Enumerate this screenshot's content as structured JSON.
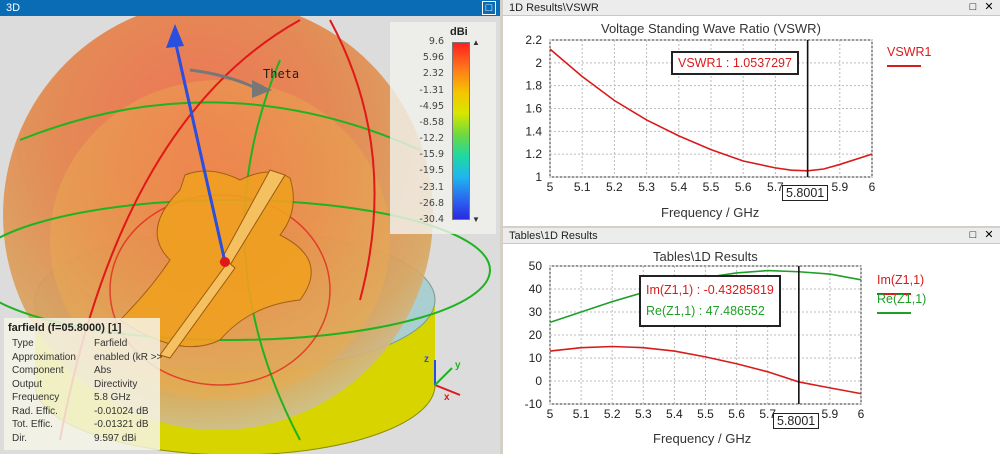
{
  "view3d": {
    "title": "3D",
    "theta_label": "Theta",
    "colorbar": {
      "unit": "dBi",
      "labels": [
        "9.6",
        "5.96",
        "2.32",
        "-1.31",
        "-4.95",
        "-8.58",
        "-12.2",
        "-15.9",
        "-19.5",
        "-23.1",
        "-26.8",
        "-30.4"
      ]
    },
    "farfield": {
      "title": "farfield (f=05.8000) [1]",
      "rows": [
        {
          "key": "Type",
          "value": "Farfield"
        },
        {
          "key": "Approximation",
          "value": "enabled (kR >>"
        },
        {
          "key": "Component",
          "value": "Abs"
        },
        {
          "key": "Output",
          "value": "Directivity"
        },
        {
          "key": "Frequency",
          "value": "5.8 GHz"
        },
        {
          "key": "Rad. Effic.",
          "value": "-0.01024 dB"
        },
        {
          "key": "Tot. Effic.",
          "value": "-0.01321 dB"
        },
        {
          "key": "Dir.",
          "value": "9.597 dBi"
        }
      ]
    },
    "axes": {
      "x": "x",
      "y": "y",
      "z": "z"
    }
  },
  "vswr_panel": {
    "title": "1D Results\\VSWR"
  },
  "results_panel": {
    "title": "Tables\\1D Results"
  },
  "chart_data": [
    {
      "type": "line",
      "title": "Voltage Standing Wave Ratio (VSWR)",
      "xlabel": "Frequency / GHz",
      "ylabel": "",
      "xlim": [
        5,
        6
      ],
      "ylim": [
        1,
        2.2
      ],
      "xticks": [
        "5",
        "5.1",
        "5.2",
        "5.3",
        "5.4",
        "5.5",
        "5.6",
        "5.7",
        "5.8001",
        "5.9",
        "6"
      ],
      "yticks": [
        "1",
        "1.2",
        "1.4",
        "1.6",
        "1.8",
        "2",
        "2.2"
      ],
      "marker_x": 5.8001,
      "marker_label": "5.8001",
      "annotations": [
        {
          "text": "VSWR1 : 1.0537297",
          "color": "#d81b1b"
        }
      ],
      "series": [
        {
          "name": "VSWR1",
          "color": "#d81b1b",
          "x": [
            5,
            5.1,
            5.2,
            5.3,
            5.4,
            5.5,
            5.6,
            5.7,
            5.75,
            5.8,
            5.85,
            5.9,
            6
          ],
          "y": [
            2.12,
            1.88,
            1.67,
            1.5,
            1.36,
            1.24,
            1.14,
            1.08,
            1.06,
            1.054,
            1.07,
            1.11,
            1.2
          ]
        }
      ]
    },
    {
      "type": "line",
      "title": "Tables\\1D Results",
      "xlabel": "Frequency / GHz",
      "ylabel": "",
      "xlim": [
        5,
        6
      ],
      "ylim": [
        -10,
        50
      ],
      "xticks": [
        "5",
        "5.1",
        "5.2",
        "5.3",
        "5.4",
        "5.5",
        "5.6",
        "5.7",
        "5.8001",
        "5.9",
        "6"
      ],
      "yticks": [
        "-10",
        "0",
        "10",
        "20",
        "30",
        "40",
        "50"
      ],
      "marker_x": 5.8001,
      "marker_label": "5.8001",
      "annotations": [
        {
          "text": "Im(Z1,1) : -0.43285819",
          "color": "#d81b1b"
        },
        {
          "text": "Re(Z1,1) : 47.486552",
          "color": "#1f9e2a"
        }
      ],
      "series": [
        {
          "name": "Im(Z1,1)",
          "color": "#d81b1b",
          "x": [
            5,
            5.1,
            5.2,
            5.3,
            5.4,
            5.5,
            5.6,
            5.7,
            5.8,
            5.9,
            6
          ],
          "y": [
            13,
            14.5,
            15,
            14.5,
            13,
            10.5,
            7.5,
            4,
            -0.4,
            -3,
            -5.5
          ]
        },
        {
          "name": "Re(Z1,1)",
          "color": "#1f9e2a",
          "x": [
            5,
            5.1,
            5.2,
            5.3,
            5.4,
            5.5,
            5.6,
            5.7,
            5.8,
            5.9,
            6
          ],
          "y": [
            25.5,
            30,
            34.5,
            38.5,
            42,
            45,
            47,
            48,
            47.5,
            46.5,
            44
          ]
        }
      ]
    }
  ]
}
